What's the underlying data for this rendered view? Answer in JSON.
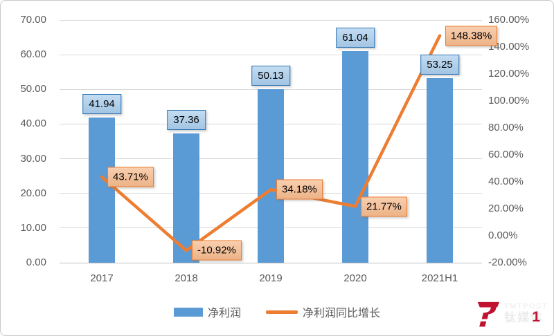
{
  "chart_data": {
    "type": "combo",
    "title": "",
    "categories": [
      "2017",
      "2018",
      "2019",
      "2020",
      "2021H1"
    ],
    "series": [
      {
        "name": "净利润",
        "chart_type": "bar",
        "axis": "left",
        "values": [
          41.94,
          37.36,
          50.13,
          61.04,
          53.25
        ],
        "data_labels": [
          "41.94",
          "37.36",
          "50.13",
          "61.04",
          "53.25"
        ],
        "color": "#5B9BD5",
        "label_fill": "#A9CDEC",
        "label_border": "#2E74B5"
      },
      {
        "name": "净利润同比增长",
        "chart_type": "line",
        "axis": "right",
        "values": [
          43.71,
          -10.92,
          34.18,
          21.77,
          148.38
        ],
        "data_labels": [
          "43.71%",
          "-10.92%",
          "34.18%",
          "21.77%",
          "148.38%"
        ],
        "color": "#ED7D31",
        "label_fill": "#F6BA8D",
        "label_border": "#ED7D31"
      }
    ],
    "left_axis": {
      "min": 0,
      "max": 70,
      "step": 10,
      "tick_labels": [
        "70.00",
        "60.00",
        "50.00",
        "40.00",
        "30.00",
        "20.00",
        "10.00",
        "0.00"
      ]
    },
    "right_axis": {
      "min": -20,
      "max": 160,
      "step": 20,
      "tick_labels": [
        "160.00%",
        "140.00%",
        "120.00%",
        "100.00%",
        "80.00%",
        "60.00%",
        "40.00%",
        "20.00%",
        "0.00%",
        "-20.00%"
      ]
    },
    "gridlines": "horizontal",
    "legend_position": "bottom"
  },
  "legend": {
    "bar_label": "净利润",
    "line_label": "净利润同比增长"
  },
  "watermark": {
    "brand_en": "TMTPOST",
    "brand_cn": "钛媒体",
    "accent": "1"
  },
  "colors": {
    "bar": "#5B9BD5",
    "line": "#ED7D31",
    "bar_label_fill": "#A9CDEC",
    "bar_label_border": "#2E74B5",
    "line_label_fill": "#F6BA8D",
    "line_label_border": "#ED7D31",
    "axis_text": "#595959",
    "gridline": "#D9D9D9",
    "axis_line": "#BFBFBF",
    "logo_red": "#C11330"
  }
}
